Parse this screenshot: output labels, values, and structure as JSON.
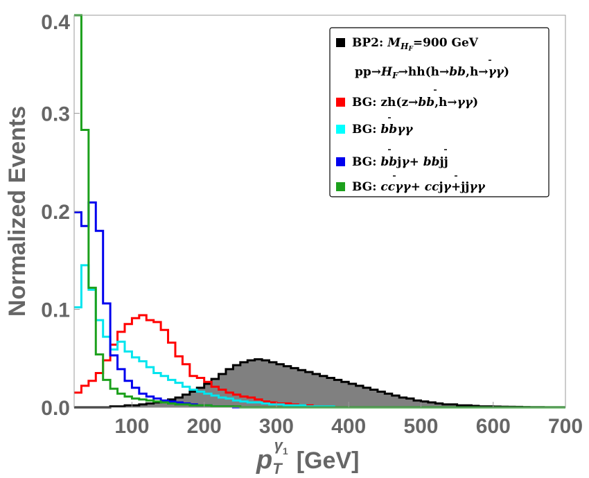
{
  "chart_data": {
    "type": "histogram",
    "title": "",
    "xlabel_main": "p",
    "xlabel_sub": "T",
    "xlabel_sup_base": "γ",
    "xlabel_sup_sub": "1",
    "xlabel_unit": "[GeV]",
    "ylabel": "Normalized Events",
    "xlim": [
      20,
      700
    ],
    "ylim": [
      0,
      0.4
    ],
    "xticks": [
      100,
      200,
      300,
      400,
      500,
      600,
      700
    ],
    "xtick_labels": [
      "100",
      "200",
      "300",
      "400",
      "500",
      "600",
      "700"
    ],
    "yticks": [
      0.0,
      0.1,
      0.2,
      0.3,
      0.4
    ],
    "ytick_labels": [
      "0.0",
      "0.1",
      "0.2",
      "0.3",
      "0.4"
    ],
    "bin_start": 20,
    "bin_width": 10,
    "legend_position": "top-right",
    "series": [
      {
        "name": "BP2",
        "color": "#000000",
        "fill": "#808080",
        "values": [
          0,
          0,
          0,
          0,
          0,
          0.001,
          0.001,
          0.002,
          0.002,
          0.003,
          0.004,
          0.005,
          0.006,
          0.008,
          0.01,
          0.013,
          0.016,
          0.02,
          0.024,
          0.029,
          0.034,
          0.039,
          0.043,
          0.046,
          0.048,
          0.049,
          0.048,
          0.046,
          0.044,
          0.042,
          0.04,
          0.038,
          0.036,
          0.034,
          0.032,
          0.03,
          0.028,
          0.026,
          0.024,
          0.022,
          0.02,
          0.018,
          0.016,
          0.014,
          0.012,
          0.01,
          0.009,
          0.007,
          0.006,
          0.005,
          0.004,
          0.003,
          0.003,
          0.002,
          0.002,
          0.0015,
          0.001,
          0.001,
          0.0008,
          0.0006,
          0.0005,
          0.0004,
          0.0003,
          0.0002,
          0.0002,
          0.0001,
          0.0001,
          0.0001
        ]
      },
      {
        "name": "BG: zh",
        "color": "#ff0000",
        "values": [
          0.015,
          0.022,
          0.027,
          0.035,
          0.048,
          0.064,
          0.077,
          0.085,
          0.091,
          0.094,
          0.089,
          0.087,
          0.079,
          0.066,
          0.052,
          0.044,
          0.032,
          0.03,
          0.026,
          0.021,
          0.018,
          0.015,
          0.013,
          0.011,
          0.01,
          0.008,
          0.006,
          0.005,
          0.004,
          0.004,
          0.003,
          0.002,
          0.002,
          0.001,
          0.001,
          0.001,
          0,
          0,
          0,
          0,
          0,
          0,
          0,
          0,
          0,
          0,
          0,
          0,
          0,
          0,
          0,
          0,
          0,
          0,
          0,
          0,
          0,
          0,
          0,
          0,
          0,
          0,
          0,
          0,
          0,
          0,
          0,
          0
        ]
      },
      {
        "name": "BG: bbγγ",
        "color": "#00e5ee",
        "values": [
          0.102,
          0.145,
          0.12,
          0.089,
          0.072,
          0.059,
          0.067,
          0.057,
          0.051,
          0.047,
          0.041,
          0.035,
          0.032,
          0.028,
          0.025,
          0.021,
          0.018,
          0.016,
          0.014,
          0.012,
          0.01,
          0.009,
          0.007,
          0.006,
          0.005,
          0.005,
          0.004,
          0.003,
          0.003,
          0.002,
          0.002,
          0.002,
          0.001,
          0.001,
          0.001,
          0.001,
          0,
          0,
          0,
          0,
          0,
          0,
          0,
          0,
          0,
          0,
          0,
          0,
          0,
          0,
          0,
          0,
          0,
          0,
          0,
          0,
          0,
          0,
          0,
          0,
          0,
          0,
          0,
          0,
          0,
          0,
          0,
          0
        ]
      },
      {
        "name": "BG: bbjγ+bbjj",
        "color": "#0000ee",
        "values": [
          0.199,
          0.185,
          0.209,
          0.18,
          0.106,
          0.053,
          0.039,
          0.027,
          0.02,
          0.014,
          0.011,
          0.009,
          0.007,
          0.006,
          0.005,
          0.004,
          0.003,
          0.002,
          0.002,
          0.001,
          0.001,
          0.001,
          0,
          0,
          0,
          0,
          0,
          0,
          0,
          0,
          0,
          0,
          0,
          0,
          0,
          0,
          0,
          0,
          0,
          0,
          0,
          0,
          0,
          0,
          0,
          0,
          0,
          0,
          0,
          0,
          0,
          0,
          0,
          0,
          0,
          0,
          0,
          0,
          0,
          0,
          0,
          0,
          0,
          0,
          0,
          0,
          0,
          0
        ]
      },
      {
        "name": "BG: ccγγ+ccjγ+jjγγ",
        "color": "#1ca01c",
        "values": [
          0.4,
          0.283,
          0.122,
          0.054,
          0.028,
          0.019,
          0.014,
          0.011,
          0.009,
          0.008,
          0.007,
          0.006,
          0.005,
          0.004,
          0.003,
          0.003,
          0.002,
          0.002,
          0.002,
          0.001,
          0.001,
          0.001,
          0.001,
          0,
          0,
          0,
          0,
          0,
          0,
          0,
          0,
          0,
          0,
          0,
          0,
          0,
          0,
          0,
          0,
          0,
          0,
          0,
          0,
          0,
          0,
          0,
          0,
          0,
          0,
          0,
          0,
          0,
          0,
          0,
          0,
          0,
          0,
          0,
          0,
          0,
          0,
          0,
          0,
          0,
          0,
          0,
          0,
          0
        ]
      }
    ],
    "legend": [
      {
        "id": "bp2",
        "color": "#000000",
        "line1": "BP2:",
        "m_base": "M",
        "m_sub": "H",
        "m_subsub": "F",
        "line1_tail": "=900 GeV",
        "line2_a": "pp→",
        "line2_h": "H",
        "line2_hsub": "F",
        "line2_b": "→hh(h→",
        "line2_bb": "bb",
        "line2_c": ",h→",
        "line2_gg": "γγ",
        "line2_d": ")"
      },
      {
        "id": "zh",
        "color": "#ff0000",
        "a": "BG: zh(z→",
        "bb": "bb",
        "b": ",h→",
        "gg": "γγ",
        "c": ")"
      },
      {
        "id": "bbgg",
        "color": "#00ffff",
        "a": "BG: ",
        "bb": "bb",
        "gg": "γγ"
      },
      {
        "id": "bbjg",
        "color": "#0000ee",
        "a": "BG: ",
        "bb1": "bb",
        "b": "j",
        "g1": "γ",
        "c": "+ ",
        "bb2": "bb",
        "d": "jj"
      },
      {
        "id": "ccgg",
        "color": "#1ca01c",
        "a": "BG: ",
        "cc1": "cc",
        "g1": "γγ",
        "b": "+ ",
        "cc2": "cc",
        "c": "j",
        "g2": "γ",
        "d": "+jj",
        "g3": "γγ"
      }
    ]
  }
}
